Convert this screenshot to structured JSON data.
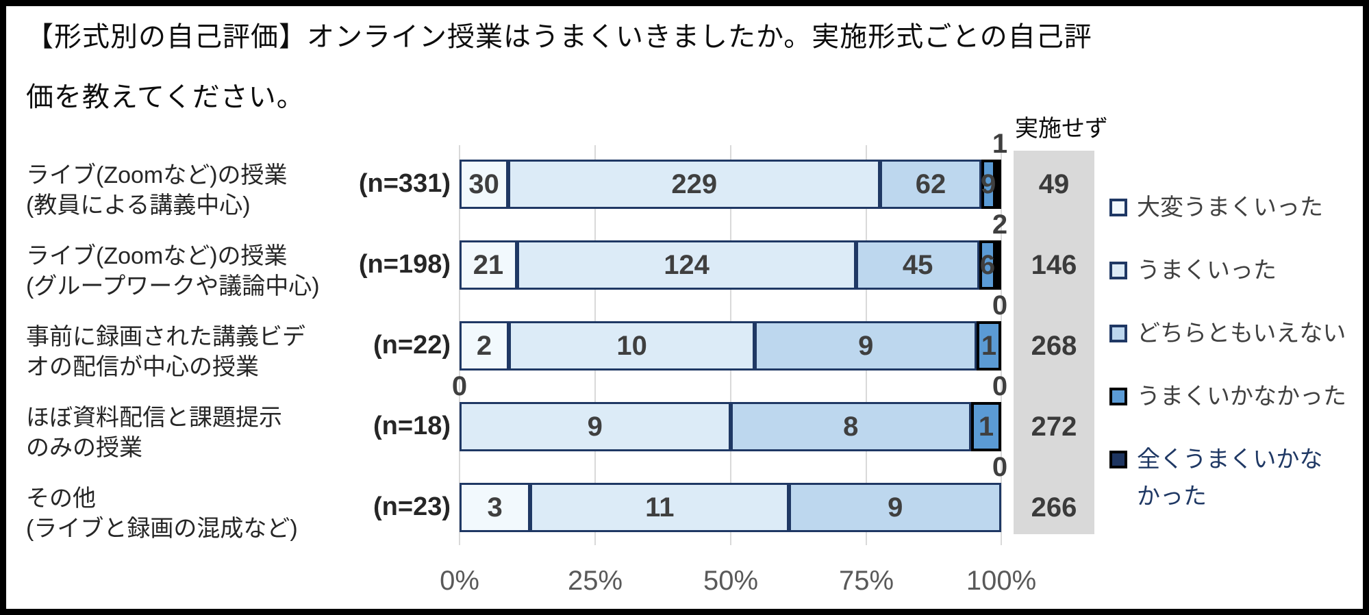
{
  "title": "【形式別の自己評価】オンライン授業はうまくいきましたか。実施形式ごとの自己評価を教えてください。",
  "chart_data": {
    "type": "bar",
    "stacked": true,
    "orientation": "horizontal",
    "title": "【形式別の自己評価】オンライン授業はうまくいきましたか。実施形式ごとの自己評価を教えてください。",
    "x_axis": {
      "tick_labels": [
        "0%",
        "25%",
        "50%",
        "75%",
        "100%"
      ],
      "range_percent": [
        0,
        100
      ],
      "gridlines": true
    },
    "series": [
      "大変うまくいった",
      "うまくいった",
      "どちらともいえない",
      "うまくいかなかった",
      "全くうまくいかなかった"
    ],
    "colors": [
      "#F2F9FD",
      "#DCEBF7",
      "#BDD7EE",
      "#5B9BD5",
      "#1E3560"
    ],
    "border_colors": [
      "#1F3864",
      "#1F3864",
      "#1F3864",
      "#000000",
      "#000000"
    ],
    "legend_text_colors": [
      "#404040",
      "#404040",
      "#404040",
      "#404040",
      "#1F3864"
    ],
    "legend_position": "right",
    "not_implemented_column": {
      "header": "実施せず",
      "background": "#D9D9D9"
    },
    "categories": [
      {
        "label_lines": [
          "ライブ(Zoomなど)の授業",
          "(教員による講義中心)"
        ],
        "n_label": "(n=331)",
        "n": 331,
        "values": [
          30,
          229,
          62,
          9,
          1
        ],
        "above_left": "",
        "above_right": "1",
        "not_implemented": 49
      },
      {
        "label_lines": [
          "ライブ(Zoomなど)の授業",
          "(グループワークや議論中心)"
        ],
        "n_label": "(n=198)",
        "n": 198,
        "values": [
          21,
          124,
          45,
          6,
          2
        ],
        "above_left": "",
        "above_right": "2",
        "not_implemented": 146
      },
      {
        "label_lines": [
          "事前に録画された講義ビデ",
          "オの配信が中心の授業"
        ],
        "n_label": "(n=22)",
        "n": 22,
        "values": [
          2,
          10,
          9,
          1,
          0
        ],
        "above_left": "",
        "above_right": "0",
        "not_implemented": 268
      },
      {
        "label_lines": [
          "ほぼ資料配信と課題提示",
          "のみの授業"
        ],
        "n_label": "(n=18)",
        "n": 18,
        "values": [
          0,
          9,
          8,
          1,
          0
        ],
        "above_left": "0",
        "above_right": "0",
        "not_implemented": 272
      },
      {
        "label_lines": [
          "その他",
          "(ライブと録画の混成など)"
        ],
        "n_label": "(n=23)",
        "n": 23,
        "values": [
          3,
          11,
          9,
          0,
          0
        ],
        "above_left": "",
        "above_right": "0",
        "not_implemented": 266
      }
    ]
  }
}
